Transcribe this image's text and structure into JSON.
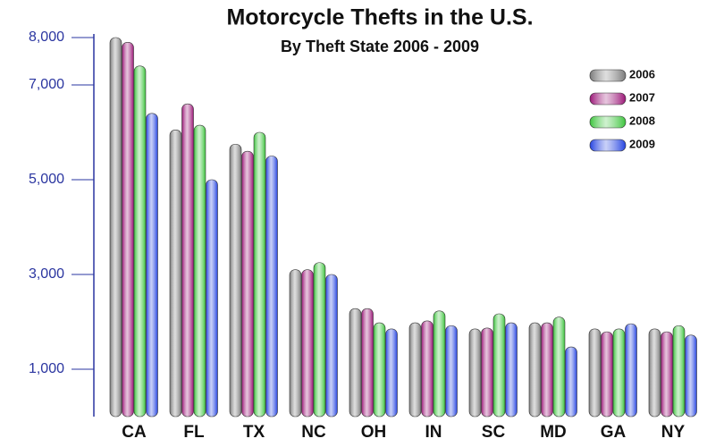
{
  "chart_data": {
    "type": "bar",
    "title": "Motorcycle Thefts in the U.S.",
    "subtitle": "By Theft State 2006 - 2009",
    "categories": [
      "CA",
      "FL",
      "TX",
      "NC",
      "OH",
      "IN",
      "SC",
      "MD",
      "GA",
      "NY"
    ],
    "series": [
      {
        "name": "2006",
        "color": "#7a7a7a",
        "values": [
          8000,
          6050,
          5750,
          3100,
          2280,
          1980,
          1850,
          1980,
          1850,
          1850
        ]
      },
      {
        "name": "2007",
        "color": "#9a1576",
        "values": [
          7900,
          6600,
          5600,
          3100,
          2280,
          2020,
          1870,
          1980,
          1790,
          1790
        ]
      },
      {
        "name": "2008",
        "color": "#3cc43c",
        "values": [
          7400,
          6150,
          6000,
          3250,
          1980,
          2230,
          2170,
          2100,
          1850,
          1920
        ]
      },
      {
        "name": "2009",
        "color": "#2442e0",
        "values": [
          6400,
          5000,
          5500,
          3000,
          1850,
          1920,
          1980,
          1470,
          1960,
          1720
        ]
      }
    ],
    "ylim": [
      0,
      8000
    ],
    "yticks": [
      {
        "value": 1000,
        "label": "1,000"
      },
      {
        "value": 3000,
        "label": "3,000"
      },
      {
        "value": 5000,
        "label": "5,000"
      },
      {
        "value": 7000,
        "label": "7,000"
      },
      {
        "value": 8000,
        "label": "8,000"
      }
    ],
    "legend": "top-right"
  }
}
